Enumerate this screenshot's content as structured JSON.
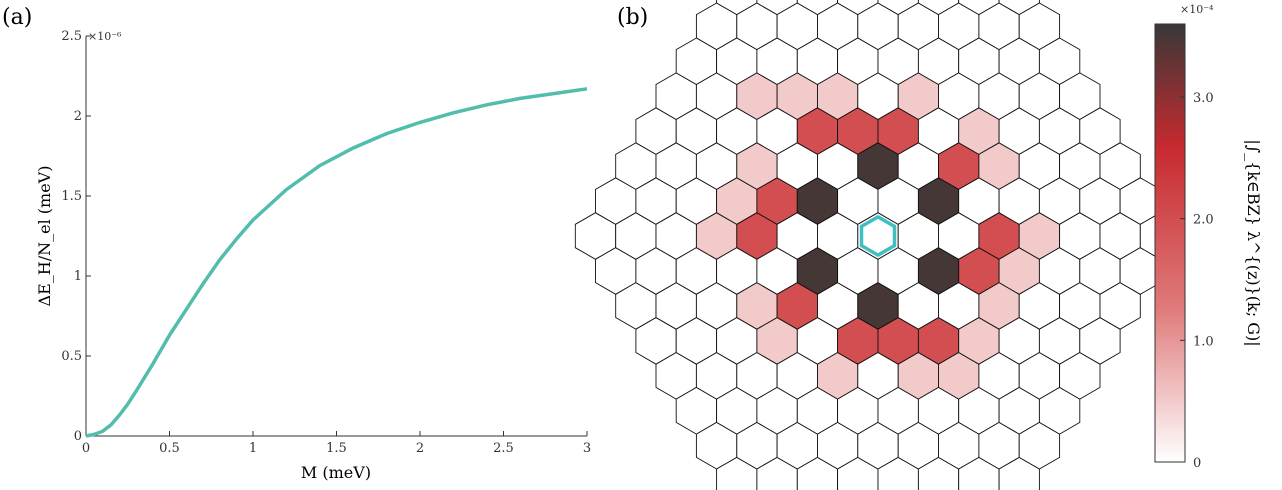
{
  "chart_data": [
    {
      "type": "line",
      "panel_label": "(a)",
      "title": "",
      "xlabel": "M (meV)",
      "ylabel": "ΔE_H/N_el (meV)",
      "y_exponent": "×10⁻⁶",
      "xlim": [
        0,
        3
      ],
      "ylim": [
        0,
        2.5
      ],
      "xticks": [
        "0",
        "0.5",
        "1",
        "1.5",
        "2",
        "2.5",
        "3"
      ],
      "yticks": [
        "0",
        "0.5",
        "1",
        "1.5",
        "2",
        "2.5"
      ],
      "line_color": "#52bdaa",
      "grid": false,
      "x": [
        0,
        0.05,
        0.1,
        0.15,
        0.2,
        0.25,
        0.3,
        0.4,
        0.5,
        0.6,
        0.7,
        0.8,
        0.9,
        1.0,
        1.2,
        1.4,
        1.6,
        1.8,
        2.0,
        2.2,
        2.4,
        2.6,
        2.8,
        3.0
      ],
      "y": [
        0,
        0.01,
        0.03,
        0.07,
        0.13,
        0.2,
        0.28,
        0.45,
        0.63,
        0.79,
        0.95,
        1.1,
        1.23,
        1.35,
        1.54,
        1.69,
        1.8,
        1.89,
        1.96,
        2.02,
        2.07,
        2.11,
        2.14,
        2.17
      ]
    },
    {
      "type": "heatmap",
      "panel_label": "(b)",
      "title": "",
      "layout": "hexagonal reciprocal lattice (7 rings)",
      "highlight_color": "#3fbfbf",
      "colorbar": {
        "label": "|∫_{k∈BZ} λ^{(z)}(k; G)|",
        "exponent": "×10⁻⁴",
        "ticks": [
          "0",
          "1.0",
          "2.0",
          "3.0"
        ],
        "range": [
          0,
          3.6
        ],
        "colors": [
          "#ffffff",
          "#e07a7a",
          "#c62a2f",
          "#383838"
        ]
      },
      "cells": [
        {
          "q": 1,
          "r": -2,
          "value": 3.5
        },
        {
          "q": 2,
          "r": -1,
          "value": 3.5
        },
        {
          "q": 1,
          "r": 1,
          "value": 3.5
        },
        {
          "q": -1,
          "r": 2,
          "value": 3.5
        },
        {
          "q": -2,
          "r": 1,
          "value": 3.5
        },
        {
          "q": -1,
          "r": -1,
          "value": 3.5
        },
        {
          "q": 0,
          "r": -3,
          "value": 2.0
        },
        {
          "q": 1,
          "r": -3,
          "value": 2.0
        },
        {
          "q": 2,
          "r": -3,
          "value": 2.0
        },
        {
          "q": 3,
          "r": -2,
          "value": 2.0
        },
        {
          "q": 3,
          "r": 0,
          "value": 2.0
        },
        {
          "q": 2,
          "r": 1,
          "value": 2.0
        },
        {
          "q": 0,
          "r": 3,
          "value": 2.0
        },
        {
          "q": -1,
          "r": 3,
          "value": 2.0
        },
        {
          "q": -2,
          "r": 3,
          "value": 2.0
        },
        {
          "q": -3,
          "r": 2,
          "value": 2.0
        },
        {
          "q": -3,
          "r": 0,
          "value": 2.0
        },
        {
          "q": -2,
          "r": -1,
          "value": 2.0
        },
        {
          "q": -1,
          "r": -4,
          "value": 0.5
        },
        {
          "q": 0,
          "r": -4,
          "value": 0.5
        },
        {
          "q": 1,
          "r": -4,
          "value": 0.5
        },
        {
          "q": 3,
          "r": -4,
          "value": 0.5
        },
        {
          "q": 4,
          "r": -3,
          "value": 0.5
        },
        {
          "q": 4,
          "r": -2,
          "value": 0.5
        },
        {
          "q": 4,
          "r": 0,
          "value": 0.5
        },
        {
          "q": 3,
          "r": 1,
          "value": 0.5
        },
        {
          "q": 2,
          "r": 2,
          "value": 0.5
        },
        {
          "q": 1,
          "r": 3,
          "value": 0.5
        },
        {
          "q": 0,
          "r": 4,
          "value": 0.5
        },
        {
          "q": -1,
          "r": 4,
          "value": 0.5
        },
        {
          "q": -3,
          "r": 4,
          "value": 0.5
        },
        {
          "q": -4,
          "r": 3,
          "value": 0.5
        },
        {
          "q": -4,
          "r": 2,
          "value": 0.5
        },
        {
          "q": -4,
          "r": 0,
          "value": 0.5
        },
        {
          "q": -3,
          "r": -1,
          "value": 0.5
        },
        {
          "q": -2,
          "r": -2,
          "value": 0.5
        }
      ]
    }
  ]
}
